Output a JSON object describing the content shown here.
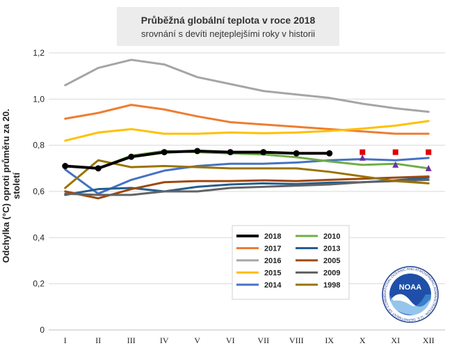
{
  "chart_data": {
    "type": "line",
    "title": "Průběžná globální teplota v roce 2018",
    "subtitle": "srovnání s devíti nejteplejšími roky v historii",
    "ylabel": "Odchylka (°C) oproti průměru za 20. století",
    "xlabel": "",
    "categories": [
      "I",
      "II",
      "III",
      "IV",
      "V",
      "VI",
      "VII",
      "VIII",
      "IX",
      "X",
      "XI",
      "XII"
    ],
    "ylim": [
      0,
      1.2
    ],
    "yticks": [
      "0",
      "0,2",
      "0,4",
      "0,6",
      "0,8",
      "1,0",
      "1,2"
    ],
    "grid": true,
    "legend_position": "bottom-center",
    "series": [
      {
        "name": "2018",
        "color": "#000000",
        "width": 4,
        "markers": true,
        "values": [
          0.71,
          0.7,
          0.75,
          0.77,
          0.775,
          0.77,
          0.77,
          0.765,
          0.765,
          null,
          null,
          null
        ]
      },
      {
        "name": "2017",
        "color": "#ed7d31",
        "width": 3,
        "values": [
          0.915,
          0.94,
          0.975,
          0.955,
          0.925,
          0.9,
          0.89,
          0.88,
          0.87,
          0.86,
          0.85,
          0.85
        ]
      },
      {
        "name": "2016",
        "color": "#a5a5a5",
        "width": 3,
        "values": [
          1.06,
          1.135,
          1.17,
          1.15,
          1.095,
          1.065,
          1.035,
          1.02,
          1.005,
          0.98,
          0.96,
          0.945
        ]
      },
      {
        "name": "2015",
        "color": "#ffc000",
        "width": 3,
        "values": [
          0.82,
          0.855,
          0.87,
          0.85,
          0.85,
          0.855,
          0.852,
          0.855,
          0.862,
          0.872,
          0.885,
          0.905
        ]
      },
      {
        "name": "2014",
        "color": "#4472c4",
        "width": 3,
        "values": [
          0.695,
          0.59,
          0.65,
          0.69,
          0.71,
          0.72,
          0.72,
          0.725,
          0.735,
          0.74,
          0.735,
          0.745
        ]
      },
      {
        "name": "2010",
        "color": "#70ad47",
        "width": 3,
        "values": [
          0.71,
          0.7,
          0.755,
          0.775,
          0.77,
          0.765,
          0.76,
          0.748,
          0.73,
          0.715,
          0.72,
          0.7
        ]
      },
      {
        "name": "2013",
        "color": "#255e91",
        "width": 3,
        "values": [
          0.585,
          0.61,
          0.615,
          0.6,
          0.62,
          0.63,
          0.635,
          0.632,
          0.638,
          0.64,
          0.648,
          0.66
        ]
      },
      {
        "name": "2005",
        "color": "#9e480e",
        "width": 3,
        "values": [
          0.6,
          0.57,
          0.61,
          0.64,
          0.645,
          0.645,
          0.648,
          0.645,
          0.65,
          0.655,
          0.66,
          0.665
        ]
      },
      {
        "name": "2009",
        "color": "#636363",
        "width": 3,
        "values": [
          0.59,
          0.585,
          0.585,
          0.6,
          0.6,
          0.615,
          0.62,
          0.625,
          0.63,
          0.64,
          0.645,
          0.65
        ]
      },
      {
        "name": "1998",
        "color": "#997300",
        "width": 3,
        "values": [
          0.615,
          0.735,
          0.705,
          0.71,
          0.705,
          0.7,
          0.7,
          0.7,
          0.685,
          0.665,
          0.645,
          0.635
        ]
      }
    ],
    "projection_markers": [
      {
        "shape": "square",
        "color": "#e00000",
        "x": [
          "X",
          "XI",
          "XII"
        ],
        "values": [
          0.77,
          0.77,
          0.77
        ]
      },
      {
        "shape": "triangle",
        "color": "#7030a0",
        "x": [
          "X",
          "XI",
          "XII"
        ],
        "values": [
          0.745,
          0.715,
          0.7
        ]
      }
    ]
  },
  "legend_order": [
    "2018",
    "2010",
    "2017",
    "2013",
    "2016",
    "2005",
    "2015",
    "2009",
    "2014",
    "1998"
  ],
  "logo": {
    "icon": "noaa-logo-icon",
    "text": "NOAA",
    "ring_text": "NATIONAL OCEANIC AND ATMOSPHERIC ADMINISTRATION · U.S. DEPARTMENT OF COMMERCE"
  }
}
